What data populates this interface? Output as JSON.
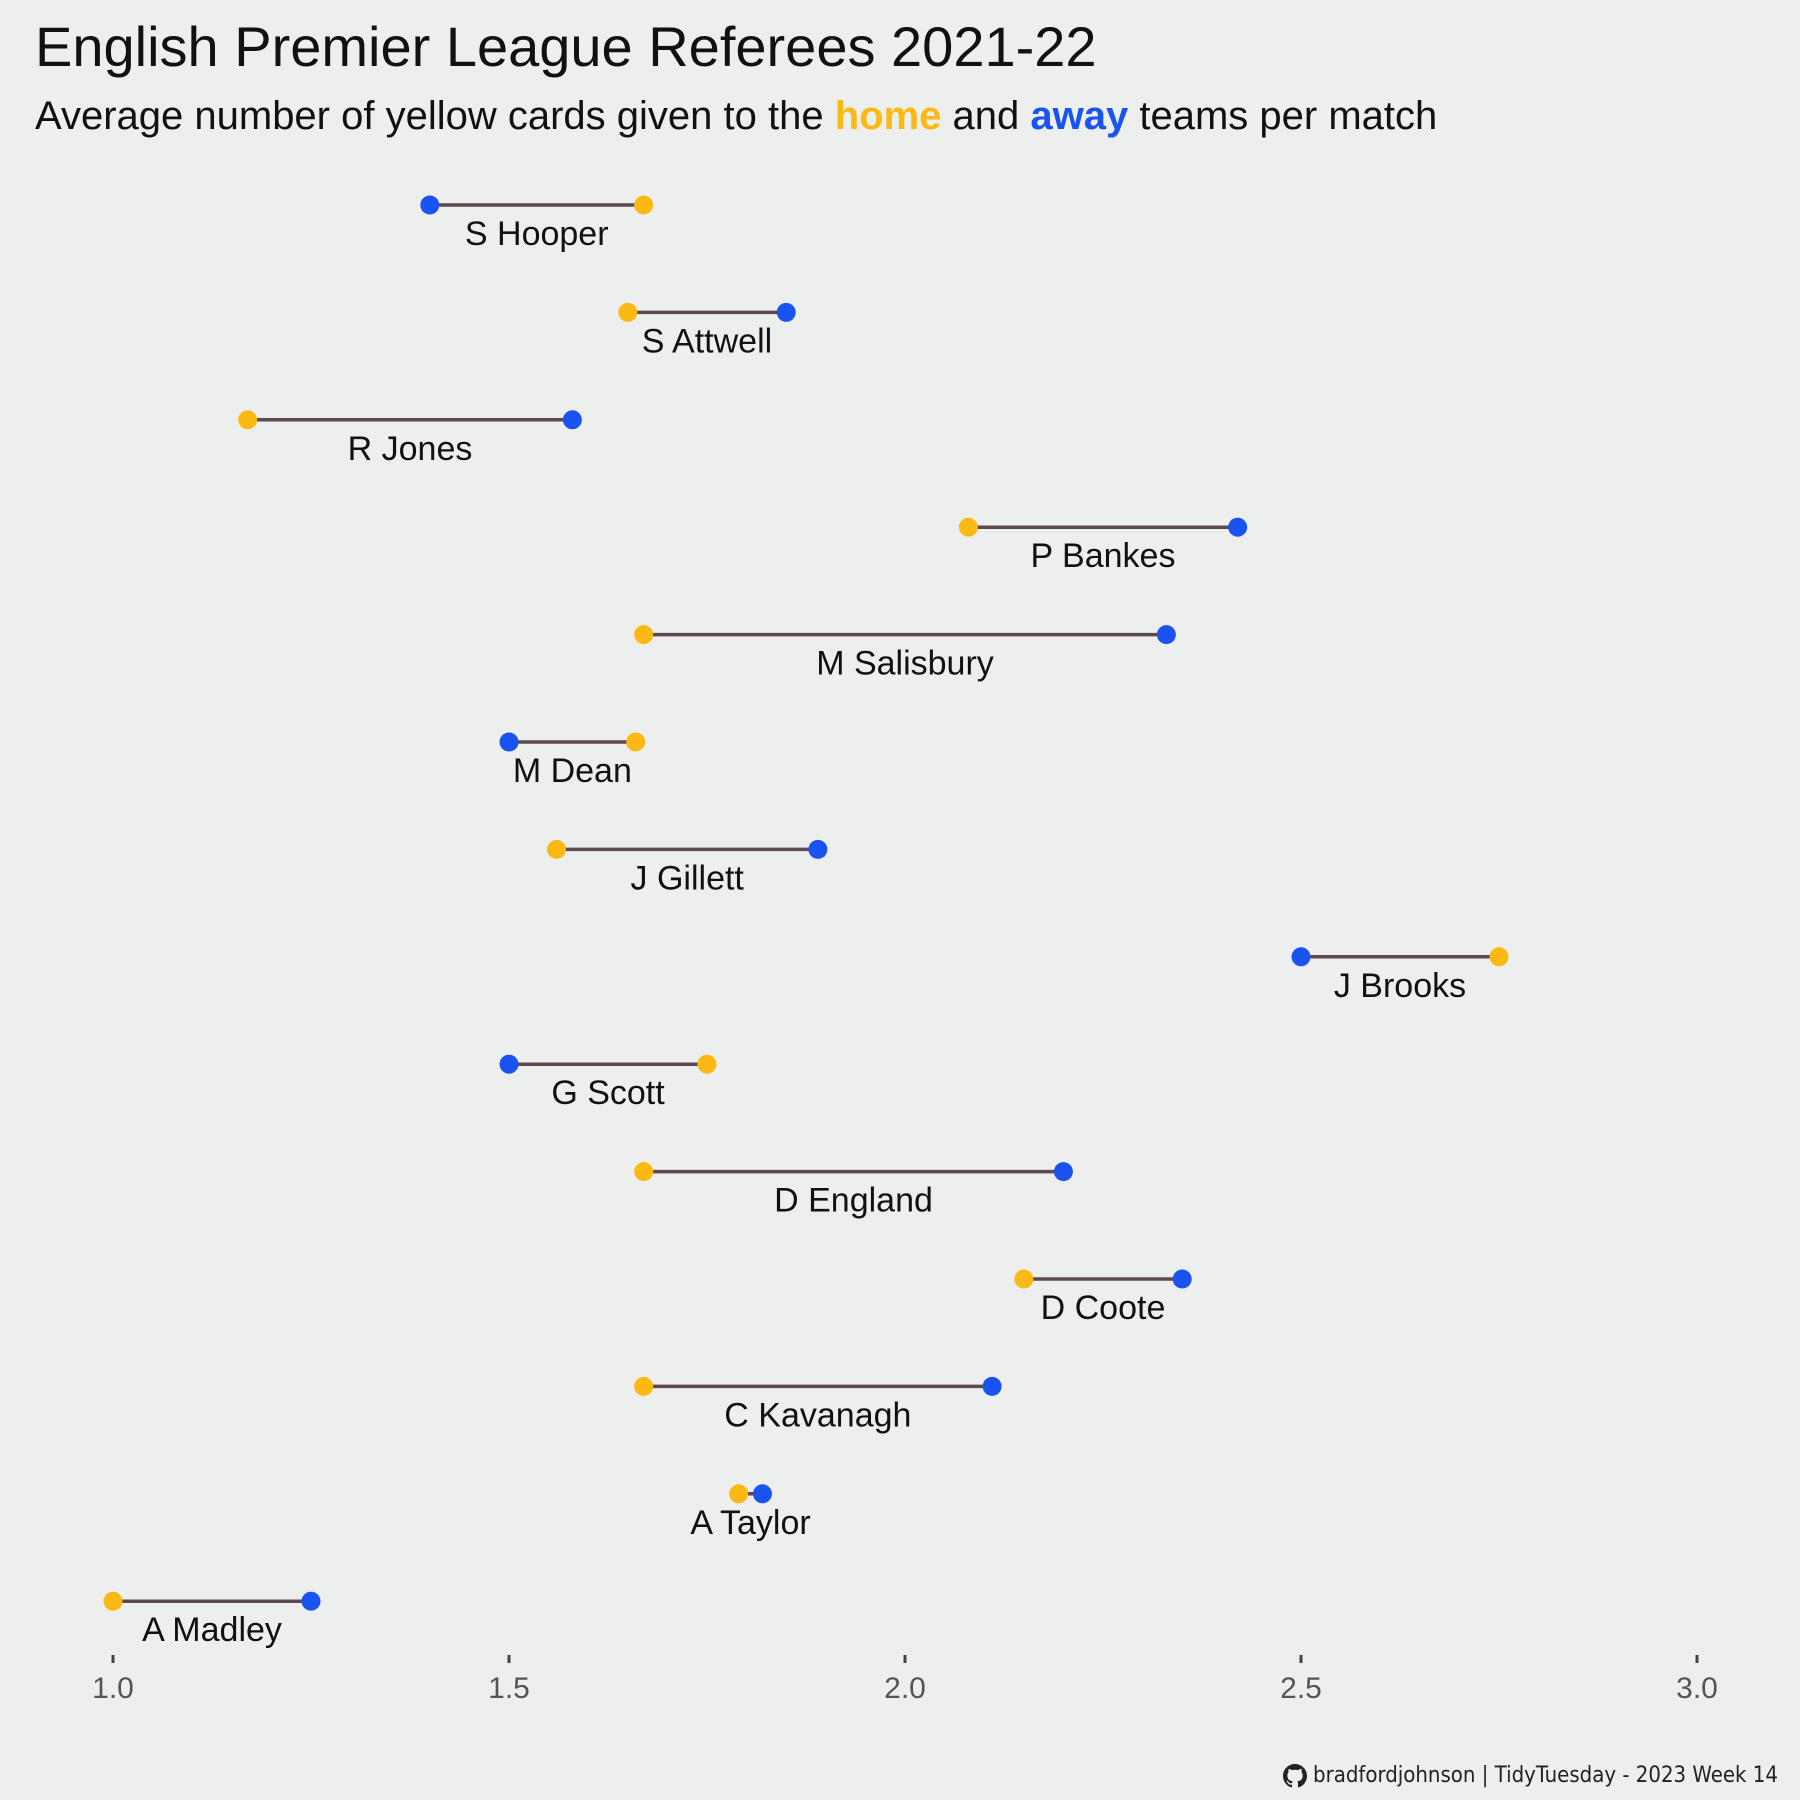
{
  "title": "English Premier League Referees 2021-22",
  "subtitle": {
    "prefix": "Average number of yellow cards given to the ",
    "home_word": "home",
    "middle": " and ",
    "away_word": "away",
    "suffix": " teams per match"
  },
  "colors": {
    "home": "#FDB913",
    "away": "#1A53F0",
    "segment": "#5B4A50",
    "background": "#ECEFED"
  },
  "caption": {
    "icon": "github-icon",
    "text": "bradfordjohnson | TidyTuesday - 2023 Week 14"
  },
  "chart_data": {
    "type": "dumbbell",
    "title": "English Premier League Referees 2021-22",
    "xlim": [
      1.0,
      3.0
    ],
    "x_ticks": [
      "1.0",
      "1.5",
      "2.0",
      "2.5",
      "3.0"
    ],
    "grid": false,
    "series": [
      {
        "name": "home",
        "values": [
          1.67,
          1.65,
          1.17,
          2.08,
          1.67,
          1.66,
          1.56,
          2.75,
          1.75,
          1.67,
          2.15,
          1.67,
          1.79,
          1.0
        ]
      },
      {
        "name": "away",
        "values": [
          1.4,
          1.85,
          1.58,
          2.42,
          2.33,
          1.5,
          1.89,
          2.5,
          1.5,
          2.2,
          2.35,
          2.11,
          1.82,
          1.25
        ]
      }
    ],
    "categories": [
      "S Hooper",
      "S Attwell",
      "R Jones",
      "P Bankes",
      "M Salisbury",
      "M Dean",
      "J Gillett",
      "J Brooks",
      "G Scott",
      "D England",
      "D Coote",
      "C Kavanagh",
      "A Taylor",
      "A Madley"
    ]
  }
}
